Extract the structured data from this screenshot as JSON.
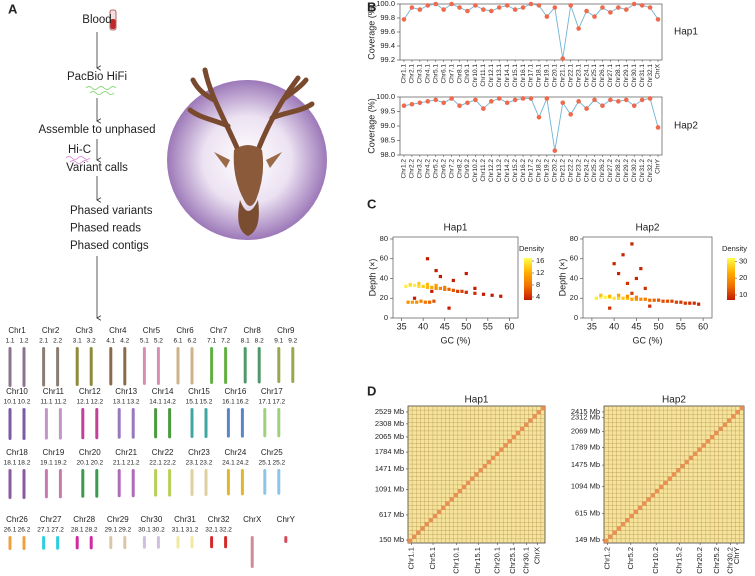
{
  "panel_labels": [
    "A",
    "B",
    "C",
    "D"
  ],
  "workflow": {
    "steps": [
      "Blood",
      "PacBio HiFi",
      "Assemble to unphased",
      "Hi-C",
      "Variant calls"
    ],
    "outputs": [
      "Phased variants",
      "Phased reads",
      "Phased contigs"
    ]
  },
  "karyotype": [
    {
      "name": "Chr1",
      "haplotypes": [
        "1.1",
        "1.2"
      ],
      "color": "#8e7391"
    },
    {
      "name": "Chr2",
      "haplotypes": [
        "2.1",
        "2.2"
      ],
      "color": "#8c7d72"
    },
    {
      "name": "Chr3",
      "haplotypes": [
        "3.1",
        "3.2"
      ],
      "color": "#8f8a3a"
    },
    {
      "name": "Chr4",
      "haplotypes": [
        "4.1",
        "4.2"
      ],
      "color": "#8a6a4a"
    },
    {
      "name": "Chr5",
      "haplotypes": [
        "5.1",
        "5.2"
      ],
      "color": "#d78fb1"
    },
    {
      "name": "Chr6",
      "haplotypes": [
        "6.1",
        "6.2"
      ],
      "color": "#cfb28a"
    },
    {
      "name": "Chr7",
      "haplotypes": [
        "7.1",
        "7.2"
      ],
      "color": "#62b043"
    },
    {
      "name": "Chr8",
      "haplotypes": [
        "8.1",
        "8.2"
      ],
      "color": "#4f9a6a"
    },
    {
      "name": "Chr9",
      "haplotypes": [
        "9.1",
        "9.2"
      ],
      "color": "#98a84a"
    },
    {
      "name": "Chr10",
      "haplotypes": [
        "10.1",
        "10.2"
      ],
      "color": "#7e5aa0"
    },
    {
      "name": "Chr11",
      "haplotypes": [
        "11.1",
        "11.2"
      ],
      "color": "#c495c9"
    },
    {
      "name": "Chr12",
      "haplotypes": [
        "12.1",
        "12.2"
      ],
      "color": "#c2409a"
    },
    {
      "name": "Chr13",
      "haplotypes": [
        "13.1",
        "13.2"
      ],
      "color": "#9a78c0"
    },
    {
      "name": "Chr14",
      "haplotypes": [
        "14.1",
        "14.2"
      ],
      "color": "#4a9a3e"
    },
    {
      "name": "Chr15",
      "haplotypes": [
        "15.1",
        "15.2"
      ],
      "color": "#3fa7a0"
    },
    {
      "name": "Chr16",
      "haplotypes": [
        "16.1",
        "16.2"
      ],
      "color": "#5a86c8"
    },
    {
      "name": "Chr17",
      "haplotypes": [
        "17.1",
        "17.2"
      ],
      "color": "#9fd07a"
    },
    {
      "name": "Chr18",
      "haplotypes": [
        "18.1",
        "18.2"
      ],
      "color": "#8a5a9e"
    },
    {
      "name": "Chr19",
      "haplotypes": [
        "19.1",
        "19.2"
      ],
      "color": "#c77ab0"
    },
    {
      "name": "Chr20",
      "haplotypes": [
        "20.1",
        "20.2"
      ],
      "color": "#3c9a50"
    },
    {
      "name": "Chr21",
      "haplotypes": [
        "21.1",
        "21.2"
      ],
      "color": "#b06ab8"
    },
    {
      "name": "Chr22",
      "haplotypes": [
        "22.1",
        "22.2"
      ],
      "color": "#b8cf58"
    },
    {
      "name": "Chr23",
      "haplotypes": [
        "23.1",
        "23.2"
      ],
      "color": "#e0cfa0"
    },
    {
      "name": "Chr24",
      "haplotypes": [
        "24.1",
        "24.2"
      ],
      "color": "#e2b62c"
    },
    {
      "name": "Chr25",
      "haplotypes": [
        "25.1",
        "25.2"
      ],
      "color": "#8ec4e6"
    },
    {
      "name": "Chr26",
      "haplotypes": [
        "26.1",
        "26.2"
      ],
      "color": "#f0a040"
    },
    {
      "name": "Chr27",
      "haplotypes": [
        "27.1",
        "27.2"
      ],
      "color": "#2ed0e0"
    },
    {
      "name": "Chr28",
      "haplotypes": [
        "28.1",
        "28.2"
      ],
      "color": "#d02aa0"
    },
    {
      "name": "Chr29",
      "haplotypes": [
        "29.1",
        "29.2"
      ],
      "color": "#d8c8a8"
    },
    {
      "name": "Chr30",
      "haplotypes": [
        "30.1",
        "30.2"
      ],
      "color": "#cfc0e0"
    },
    {
      "name": "Chr31",
      "haplotypes": [
        "31.1",
        "31.2"
      ],
      "color": "#f0eaa0"
    },
    {
      "name": "Chr32",
      "haplotypes": [
        "32.1",
        "32.2"
      ],
      "color": "#d42a2a"
    },
    {
      "name": "ChrX",
      "color": "#d08a9a"
    },
    {
      "name": "ChrY",
      "color": "#d84a5a"
    }
  ],
  "chart_data": [
    {
      "type": "line",
      "y_label": "Coverage (%)",
      "categories": [
        "Chr1.1",
        "Chr2.1",
        "Chr3.1",
        "Chr4.1",
        "Chr5.1",
        "Chr6.1",
        "Chr7.1",
        "Chr8.1",
        "Chr9.1",
        "Chr10.1",
        "Chr11.1",
        "Chr12.1",
        "Chr13.1",
        "Chr14.1",
        "Chr15.1",
        "Chr16.1",
        "Chr17.1",
        "Chr18.1",
        "Chr19.1",
        "Chr20.1",
        "Chr21.1",
        "Chr22.1",
        "Chr23.1",
        "Chr24.1",
        "Chr25.1",
        "Chr26.1",
        "Chr27.1",
        "Chr28.1",
        "Chr29.1",
        "Chr30.1",
        "Chr31.1",
        "Chr32.1",
        "ChrX"
      ],
      "series": [
        {
          "name": "Hap1",
          "color": "#ef6a4c",
          "line_color": "#6fb4d4",
          "values": [
            99.78,
            99.95,
            99.92,
            99.98,
            100.0,
            99.92,
            100.0,
            99.95,
            99.9,
            99.98,
            99.92,
            99.9,
            99.95,
            99.98,
            99.92,
            99.95,
            100.0,
            99.98,
            99.82,
            99.95,
            99.22,
            99.98,
            99.65,
            99.9,
            99.82,
            99.95,
            99.88,
            99.95,
            99.92,
            100.0,
            99.98,
            99.95,
            99.78
          ]
        }
      ],
      "ylim": [
        99.2,
        100.0
      ],
      "yticks": [
        99.2,
        99.4,
        99.6,
        99.8,
        {
          "value": 100.0,
          "label": "100.0"
        }
      ]
    },
    {
      "type": "line",
      "y_label": "Coverage (%)",
      "categories": [
        "Chr1.2",
        "Chr2.2",
        "Chr3.2",
        "Chr4.2",
        "Chr5.2",
        "Chr6.2",
        "Chr7.2",
        "Chr8.2",
        "Chr9.2",
        "Chr10.2",
        "Chr11.2",
        "Chr12.2",
        "Chr13.2",
        "Chr14.2",
        "Chr15.2",
        "Chr16.2",
        "Chr17.2",
        "Chr18.2",
        "Chr19.2",
        "Chr20.2",
        "Chr21.2",
        "Chr22.2",
        "Chr23.2",
        "Chr24.2",
        "Chr25.2",
        "Chr26.2",
        "Chr27.2",
        "Chr28.2",
        "Chr29.2",
        "Chr30.2",
        "Chr31.2",
        "Chr32.2",
        "ChrY"
      ],
      "series": [
        {
          "name": "Hap2",
          "color": "#ef6a4c",
          "line_color": "#6fb4d4",
          "values": [
            99.7,
            99.75,
            99.8,
            99.85,
            99.9,
            99.8,
            99.95,
            99.7,
            99.8,
            99.9,
            99.6,
            99.85,
            99.95,
            99.8,
            99.9,
            99.95,
            99.95,
            99.3,
            99.95,
            98.15,
            99.8,
            99.4,
            99.85,
            99.6,
            99.9,
            99.7,
            99.9,
            99.85,
            99.9,
            99.7,
            99.9,
            99.95,
            98.95
          ]
        }
      ],
      "ylim": [
        98.0,
        100.0
      ],
      "yticks": [
        {
          "value": 98.0,
          "label": "98.0"
        },
        98.5,
        {
          "value": 99.0,
          "label": "99.0"
        },
        99.5,
        {
          "value": 100.0,
          "label": "100.0"
        }
      ]
    },
    {
      "type": "scatter",
      "title": "Hap1",
      "x_label": "GC (%)",
      "y_label": "Depth (×)",
      "x": [
        36,
        37,
        38,
        39,
        40,
        41,
        42,
        43,
        44,
        45,
        46,
        47,
        48,
        49,
        50,
        52,
        54,
        56,
        58,
        36.5,
        37.5,
        38.5,
        39.5,
        40.5,
        41.5,
        42.5,
        37,
        39,
        41,
        43,
        45,
        41,
        43,
        44,
        47,
        50,
        42,
        38,
        52,
        46
      ],
      "y": [
        32,
        33,
        33,
        32,
        32,
        31,
        31,
        30,
        30,
        29,
        29,
        28,
        27,
        27,
        26,
        25,
        24,
        23,
        22,
        16,
        16,
        16,
        17,
        16,
        16,
        17,
        34,
        35,
        34,
        33,
        31,
        60,
        48,
        42,
        38,
        45,
        27,
        20,
        30,
        10
      ],
      "density": [
        16,
        16,
        16,
        15,
        14,
        13,
        12,
        10,
        9,
        8,
        7,
        6,
        5,
        5,
        4,
        4,
        3,
        3,
        3,
        10,
        11,
        10,
        9,
        8,
        7,
        6,
        15,
        14,
        13,
        11,
        9,
        2,
        2,
        2,
        2,
        2,
        3,
        3,
        2,
        2
      ],
      "colorbar": {
        "label": "Density",
        "lim": [
          3,
          17
        ],
        "ticks": [
          4,
          8,
          12,
          16
        ],
        "colors": [
          "#c41a00",
          "#f07000",
          "#ffb000",
          "#ffff50"
        ]
      },
      "xlim": [
        33,
        62
      ],
      "xticks": [
        35,
        40,
        45,
        50,
        55,
        60
      ],
      "ylim": [
        0,
        82
      ],
      "yticks": [
        0,
        20,
        40,
        60,
        80
      ]
    },
    {
      "type": "scatter",
      "title": "Hap2",
      "x_label": "GC (%)",
      "y_label": "Depth (×)",
      "x": [
        36,
        37,
        38,
        39,
        40,
        41,
        42,
        43,
        44,
        45,
        46,
        47,
        48,
        49,
        50,
        51,
        52,
        53,
        54,
        55,
        56,
        57,
        58,
        59,
        37,
        39,
        41,
        43,
        45,
        44,
        42,
        40,
        46,
        41,
        45,
        43,
        47,
        39,
        48,
        44
      ],
      "y": [
        20,
        21,
        21,
        21,
        20,
        20,
        20,
        20,
        19,
        19,
        19,
        19,
        18,
        18,
        18,
        17,
        17,
        17,
        16,
        16,
        15,
        15,
        15,
        14,
        23,
        22,
        23,
        22,
        21,
        75,
        64,
        55,
        50,
        45,
        40,
        35,
        30,
        10,
        12,
        25
      ],
      "density": [
        30,
        31,
        31,
        30,
        29,
        28,
        26,
        24,
        22,
        20,
        19,
        17,
        15,
        14,
        13,
        12,
        12,
        11,
        11,
        10,
        10,
        9,
        9,
        8,
        25,
        24,
        22,
        20,
        18,
        8,
        8,
        8,
        8,
        8,
        8,
        9,
        9,
        9,
        9,
        10
      ],
      "colorbar": {
        "label": "Density",
        "lim": [
          7,
          32
        ],
        "ticks": [
          10,
          20,
          30
        ],
        "colors": [
          "#c41a00",
          "#f07000",
          "#ffb000",
          "#ffff50"
        ]
      },
      "xlim": [
        33,
        62
      ],
      "xticks": [
        35,
        40,
        45,
        50,
        55,
        60
      ],
      "ylim": [
        0,
        82
      ],
      "yticks": [
        0,
        20,
        40,
        60,
        80
      ]
    },
    {
      "type": "heatmap",
      "title": "Hap1",
      "xlim": [
        95,
        2640
      ],
      "ylim": [
        95,
        2640
      ],
      "yticks": [
        {
          "value": 150,
          "label": "150 Mb"
        },
        {
          "value": 617,
          "label": "617 Mb"
        },
        {
          "value": 1091,
          "label": "1091 Mb"
        },
        {
          "value": 1471,
          "label": "1471 Mb"
        },
        {
          "value": 1784,
          "label": "1784 Mb"
        },
        {
          "value": 2065,
          "label": "2065 Mb"
        },
        {
          "value": 2308,
          "label": "2308 Mb"
        },
        {
          "value": 2529,
          "label": "2529 Mb"
        }
      ],
      "xticks": [
        {
          "value": 160,
          "label": "Chr1.1"
        },
        {
          "value": 560,
          "label": "Chr5.1"
        },
        {
          "value": 1000,
          "label": "Chr10.1"
        },
        {
          "value": 1400,
          "label": "Chr15.1"
        },
        {
          "value": 1760,
          "label": "Chr20.1"
        },
        {
          "value": 2050,
          "label": "Chr25.1"
        },
        {
          "value": 2300,
          "label": "Chr30.1"
        },
        {
          "value": 2500,
          "label": "ChrX"
        }
      ],
      "colors": {
        "background": "#f6e49a",
        "grid": "#b8975a",
        "diagonal": "#e8874a"
      }
    },
    {
      "type": "heatmap",
      "title": "Hap2",
      "xlim": [
        96,
        2520
      ],
      "ylim": [
        96,
        2520
      ],
      "yticks": [
        {
          "value": 149,
          "label": "149 Mb"
        },
        {
          "value": 615,
          "label": "615 Mb"
        },
        {
          "value": 1094,
          "label": "1094 Mb"
        },
        {
          "value": 1475,
          "label": "1475 Mb"
        },
        {
          "value": 1789,
          "label": "1789 Mb"
        },
        {
          "value": 2069,
          "label": "2069 Mb"
        },
        {
          "value": 2312,
          "label": "2312 Mb"
        },
        {
          "value": 2415,
          "label": "2415 Mb"
        }
      ],
      "xticks": [
        {
          "value": 160,
          "label": "Chr1.2"
        },
        {
          "value": 560,
          "label": "Chr5.2"
        },
        {
          "value": 1000,
          "label": "Chr10.2"
        },
        {
          "value": 1400,
          "label": "Chr15.2"
        },
        {
          "value": 1760,
          "label": "Chr20.2"
        },
        {
          "value": 2050,
          "label": "Chr25.2"
        },
        {
          "value": 2290,
          "label": "Chr30.2"
        },
        {
          "value": 2400,
          "label": "ChrY"
        }
      ],
      "colors": {
        "background": "#f6e49a",
        "grid": "#b8975a",
        "diagonal": "#e8874a"
      }
    }
  ]
}
